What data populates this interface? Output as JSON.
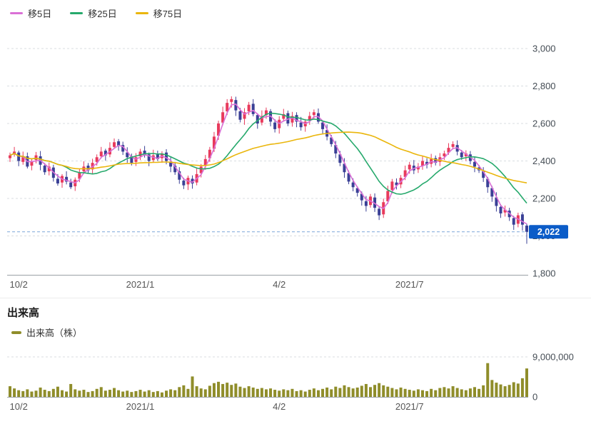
{
  "chart_data": [
    {
      "type": "candlestick",
      "name": "daily-price-chart",
      "ylim": [
        1800,
        3000
      ],
      "up_color": "#e83a5c",
      "down_color": "#3a4096",
      "grid_color": "#d9dde1",
      "y_ticks": [
        {
          "value": 3000,
          "label": "3,000"
        },
        {
          "value": 2800,
          "label": "2,800"
        },
        {
          "value": 2600,
          "label": "2,600"
        },
        {
          "value": 2400,
          "label": "2,400"
        },
        {
          "value": 2200,
          "label": "2,200"
        },
        {
          "value": 2000,
          "label": "2,000"
        },
        {
          "value": 1800,
          "label": "1,800"
        }
      ],
      "x_ticks": [
        {
          "i": 2,
          "label": "10/2"
        },
        {
          "i": 30,
          "label": "2021/1"
        },
        {
          "i": 62,
          "label": "4/2"
        },
        {
          "i": 92,
          "label": "2021/7"
        }
      ],
      "current_price": {
        "value": 2022,
        "label": "2,022",
        "badge_color": "#0b5cc8",
        "line_color": "#7aa6d9"
      },
      "moving_averages": [
        {
          "label": "移5日",
          "period": 5,
          "color": "#da70d6"
        },
        {
          "label": "移25日",
          "period": 25,
          "color": "#26a96c"
        },
        {
          "label": "移75日",
          "period": 75,
          "color": "#eab60c"
        }
      ],
      "ohlc": [
        [
          2415,
          2445,
          2395,
          2430
        ],
        [
          2435,
          2475,
          2423,
          2450
        ],
        [
          2445,
          2455,
          2372,
          2400
        ],
        [
          2395,
          2450,
          2380,
          2420
        ],
        [
          2425,
          2445,
          2360,
          2370
        ],
        [
          2375,
          2412,
          2350,
          2400
        ],
        [
          2405,
          2448,
          2387,
          2430
        ],
        [
          2425,
          2453,
          2350,
          2380
        ],
        [
          2375,
          2389,
          2326,
          2340
        ],
        [
          2345,
          2392,
          2323,
          2370
        ],
        [
          2365,
          2380,
          2290,
          2310
        ],
        [
          2305,
          2330,
          2268,
          2280
        ],
        [
          2285,
          2330,
          2257,
          2320
        ],
        [
          2315,
          2345,
          2275,
          2290
        ],
        [
          2285,
          2305,
          2250,
          2260
        ],
        [
          2265,
          2312,
          2240,
          2300
        ],
        [
          2305,
          2358,
          2287,
          2340
        ],
        [
          2345,
          2398,
          2331,
          2370
        ],
        [
          2375,
          2389,
          2336,
          2350
        ],
        [
          2355,
          2412,
          2333,
          2390
        ],
        [
          2395,
          2435,
          2375,
          2420
        ],
        [
          2425,
          2475,
          2413,
          2450
        ],
        [
          2455,
          2465,
          2402,
          2430
        ],
        [
          2435,
          2500,
          2420,
          2470
        ],
        [
          2475,
          2520,
          2465,
          2500
        ],
        [
          2505,
          2517,
          2455,
          2480
        ],
        [
          2485,
          2503,
          2432,
          2450
        ],
        [
          2445,
          2473,
          2390,
          2420
        ],
        [
          2425,
          2439,
          2376,
          2390
        ],
        [
          2395,
          2442,
          2373,
          2420
        ],
        [
          2425,
          2465,
          2405,
          2450
        ],
        [
          2455,
          2480,
          2418,
          2430
        ],
        [
          2435,
          2445,
          2372,
          2400
        ],
        [
          2405,
          2460,
          2390,
          2430
        ],
        [
          2435,
          2455,
          2400,
          2410
        ],
        [
          2415,
          2452,
          2390,
          2440
        ],
        [
          2445,
          2463,
          2382,
          2400
        ],
        [
          2395,
          2423,
          2340,
          2370
        ],
        [
          2375,
          2389,
          2326,
          2340
        ],
        [
          2345,
          2367,
          2278,
          2300
        ],
        [
          2295,
          2310,
          2250,
          2270
        ],
        [
          2275,
          2322,
          2245,
          2310
        ],
        [
          2305,
          2323,
          2252,
          2280
        ],
        [
          2285,
          2363,
          2270,
          2330
        ],
        [
          2335,
          2384,
          2312,
          2370
        ],
        [
          2375,
          2432,
          2353,
          2410
        ],
        [
          2415,
          2475,
          2395,
          2460
        ],
        [
          2465,
          2555,
          2448,
          2530
        ],
        [
          2535,
          2615,
          2512,
          2600
        ],
        [
          2605,
          2690,
          2590,
          2660
        ],
        [
          2665,
          2730,
          2645,
          2710
        ],
        [
          2715,
          2745,
          2685,
          2730
        ],
        [
          2725,
          2743,
          2640,
          2670
        ],
        [
          2665,
          2683,
          2606,
          2620
        ],
        [
          2625,
          2682,
          2593,
          2660
        ],
        [
          2665,
          2715,
          2645,
          2700
        ],
        [
          2705,
          2730,
          2638,
          2650
        ],
        [
          2645,
          2655,
          2572,
          2600
        ],
        [
          2605,
          2670,
          2590,
          2640
        ],
        [
          2645,
          2685,
          2625,
          2670
        ],
        [
          2665,
          2677,
          2585,
          2610
        ],
        [
          2605,
          2623,
          2552,
          2570
        ],
        [
          2575,
          2639,
          2546,
          2620
        ],
        [
          2625,
          2678,
          2610,
          2650
        ],
        [
          2655,
          2669,
          2586,
          2600
        ],
        [
          2605,
          2662,
          2583,
          2640
        ],
        [
          2645,
          2660,
          2580,
          2610
        ],
        [
          2605,
          2635,
          2562,
          2580
        ],
        [
          2585,
          2624,
          2556,
          2610
        ],
        [
          2615,
          2662,
          2593,
          2640
        ],
        [
          2645,
          2675,
          2625,
          2660
        ],
        [
          2655,
          2680,
          2598,
          2610
        ],
        [
          2605,
          2615,
          2542,
          2570
        ],
        [
          2565,
          2595,
          2510,
          2530
        ],
        [
          2525,
          2539,
          2476,
          2490
        ],
        [
          2485,
          2507,
          2415,
          2440
        ],
        [
          2435,
          2453,
          2372,
          2390
        ],
        [
          2385,
          2415,
          2310,
          2340
        ],
        [
          2335,
          2349,
          2276,
          2290
        ],
        [
          2285,
          2307,
          2238,
          2260
        ],
        [
          2255,
          2265,
          2210,
          2230
        ],
        [
          2225,
          2237,
          2162,
          2190
        ],
        [
          2185,
          2213,
          2130,
          2160
        ],
        [
          2165,
          2224,
          2151,
          2210
        ],
        [
          2205,
          2227,
          2128,
          2150
        ],
        [
          2145,
          2157,
          2085,
          2110
        ],
        [
          2115,
          2199,
          2096,
          2180
        ],
        [
          2185,
          2268,
          2170,
          2240
        ],
        [
          2245,
          2304,
          2226,
          2290
        ],
        [
          2285,
          2307,
          2248,
          2270
        ],
        [
          2275,
          2325,
          2255,
          2310
        ],
        [
          2315,
          2375,
          2298,
          2350
        ],
        [
          2355,
          2395,
          2332,
          2380
        ],
        [
          2375,
          2405,
          2330,
          2350
        ],
        [
          2355,
          2389,
          2336,
          2370
        ],
        [
          2375,
          2427,
          2353,
          2400
        ],
        [
          2395,
          2415,
          2360,
          2380
        ],
        [
          2385,
          2438,
          2366,
          2410
        ],
        [
          2415,
          2429,
          2376,
          2390
        ],
        [
          2395,
          2442,
          2373,
          2420
        ],
        [
          2425,
          2455,
          2405,
          2440
        ],
        [
          2445,
          2495,
          2433,
          2470
        ],
        [
          2475,
          2505,
          2462,
          2490
        ],
        [
          2485,
          2510,
          2430,
          2450
        ],
        [
          2445,
          2459,
          2406,
          2420
        ],
        [
          2425,
          2457,
          2400,
          2440
        ],
        [
          2435,
          2453,
          2382,
          2400
        ],
        [
          2395,
          2423,
          2340,
          2370
        ],
        [
          2365,
          2379,
          2336,
          2350
        ],
        [
          2345,
          2367,
          2288,
          2310
        ],
        [
          2305,
          2315,
          2230,
          2260
        ],
        [
          2255,
          2267,
          2182,
          2210
        ],
        [
          2205,
          2233,
          2130,
          2160
        ],
        [
          2155,
          2169,
          2096,
          2120
        ],
        [
          2125,
          2162,
          2103,
          2140
        ],
        [
          2135,
          2150,
          2080,
          2100
        ],
        [
          2095,
          2107,
          2032,
          2060
        ],
        [
          2065,
          2124,
          2046,
          2110
        ],
        [
          2115,
          2127,
          2028,
          2060
        ],
        [
          2055,
          2065,
          1958,
          2022
        ]
      ]
    },
    {
      "type": "bar",
      "title": "出来高",
      "legend_label": "出来高（株）",
      "color": "#8f8d2a",
      "ylim": [
        0,
        10000000
      ],
      "y_ticks": [
        {
          "value": 9000000,
          "label": "9,000,000"
        },
        {
          "value": 0,
          "label": "0"
        }
      ],
      "x_ticks": [
        {
          "i": 2,
          "label": "10/2"
        },
        {
          "i": 30,
          "label": "2021/1"
        },
        {
          "i": 62,
          "label": "4/2"
        },
        {
          "i": 92,
          "label": "2021/7"
        }
      ],
      "values": [
        2400000,
        1900000,
        1500000,
        1300000,
        1700000,
        1200000,
        1400000,
        2100000,
        1600000,
        1300000,
        1800000,
        2300000,
        1500000,
        1200000,
        2900000,
        1700000,
        1400000,
        1600000,
        1100000,
        1300000,
        1800000,
        2200000,
        1400000,
        1600000,
        2000000,
        1500000,
        1200000,
        1400000,
        1100000,
        1300000,
        1600000,
        1200000,
        1500000,
        1100000,
        1300000,
        1000000,
        1400000,
        1700000,
        1500000,
        2200000,
        2600000,
        1800000,
        4600000,
        2400000,
        1900000,
        1700000,
        2500000,
        3100000,
        3400000,
        2900000,
        3200000,
        2700000,
        3000000,
        2300000,
        2000000,
        2400000,
        2100000,
        1800000,
        2000000,
        1700000,
        1900000,
        1600000,
        1400000,
        1700000,
        1500000,
        1800000,
        1300000,
        1500000,
        1200000,
        1600000,
        1900000,
        1500000,
        1800000,
        2100000,
        1700000,
        2300000,
        2000000,
        2600000,
        2200000,
        1900000,
        2100000,
        2500000,
        2900000,
        2200000,
        2700000,
        3100000,
        2600000,
        2300000,
        2000000,
        1700000,
        2100000,
        1800000,
        1600000,
        1400000,
        1700000,
        1500000,
        1300000,
        1800000,
        1500000,
        2000000,
        2200000,
        1900000,
        2400000,
        2000000,
        1700000,
        1500000,
        1900000,
        2200000,
        1800000,
        2600000,
        7600000,
        3800000,
        3200000,
        2800000,
        2400000,
        2700000,
        3300000,
        3000000,
        4200000,
        6400000
      ]
    }
  ]
}
